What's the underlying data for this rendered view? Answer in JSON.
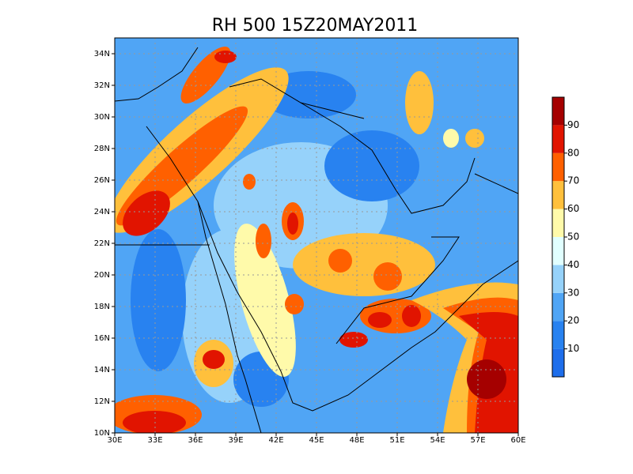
{
  "map": {
    "title": "RH 500 15Z20MAY2011",
    "lon_range": [
      30,
      60
    ],
    "lat_range": [
      10,
      35
    ],
    "lon_ticks": [
      {
        "value": 30,
        "label": "30E"
      },
      {
        "value": 33,
        "label": "33E"
      },
      {
        "value": 36,
        "label": "36E"
      },
      {
        "value": 39,
        "label": "39E"
      },
      {
        "value": 42,
        "label": "42E"
      },
      {
        "value": 45,
        "label": "45E"
      },
      {
        "value": 48,
        "label": "48E"
      },
      {
        "value": 51,
        "label": "51E"
      },
      {
        "value": 54,
        "label": "54E"
      },
      {
        "value": 57,
        "label": "57E"
      },
      {
        "value": 60,
        "label": "60E"
      }
    ],
    "lat_ticks": [
      {
        "value": 10,
        "label": "10N"
      },
      {
        "value": 12,
        "label": "12N"
      },
      {
        "value": 14,
        "label": "14N"
      },
      {
        "value": 16,
        "label": "16N"
      },
      {
        "value": 18,
        "label": "18N"
      },
      {
        "value": 20,
        "label": "20N"
      },
      {
        "value": 22,
        "label": "22N"
      },
      {
        "value": 24,
        "label": "24N"
      },
      {
        "value": 26,
        "label": "26N"
      },
      {
        "value": 28,
        "label": "28N"
      },
      {
        "value": 30,
        "label": "30N"
      },
      {
        "value": 32,
        "label": "32N"
      },
      {
        "value": 34,
        "label": "34N"
      }
    ],
    "colorbar": {
      "levels": [
        10,
        20,
        30,
        40,
        50,
        60,
        70,
        80,
        90
      ],
      "colors": [
        "#1e6eeb",
        "#2882f0",
        "#50a5f5",
        "#96d2fa",
        "#e1ffff",
        "#fffaaa",
        "#ffc03c",
        "#ff6000",
        "#e11400",
        "#a50000"
      ]
    }
  }
}
